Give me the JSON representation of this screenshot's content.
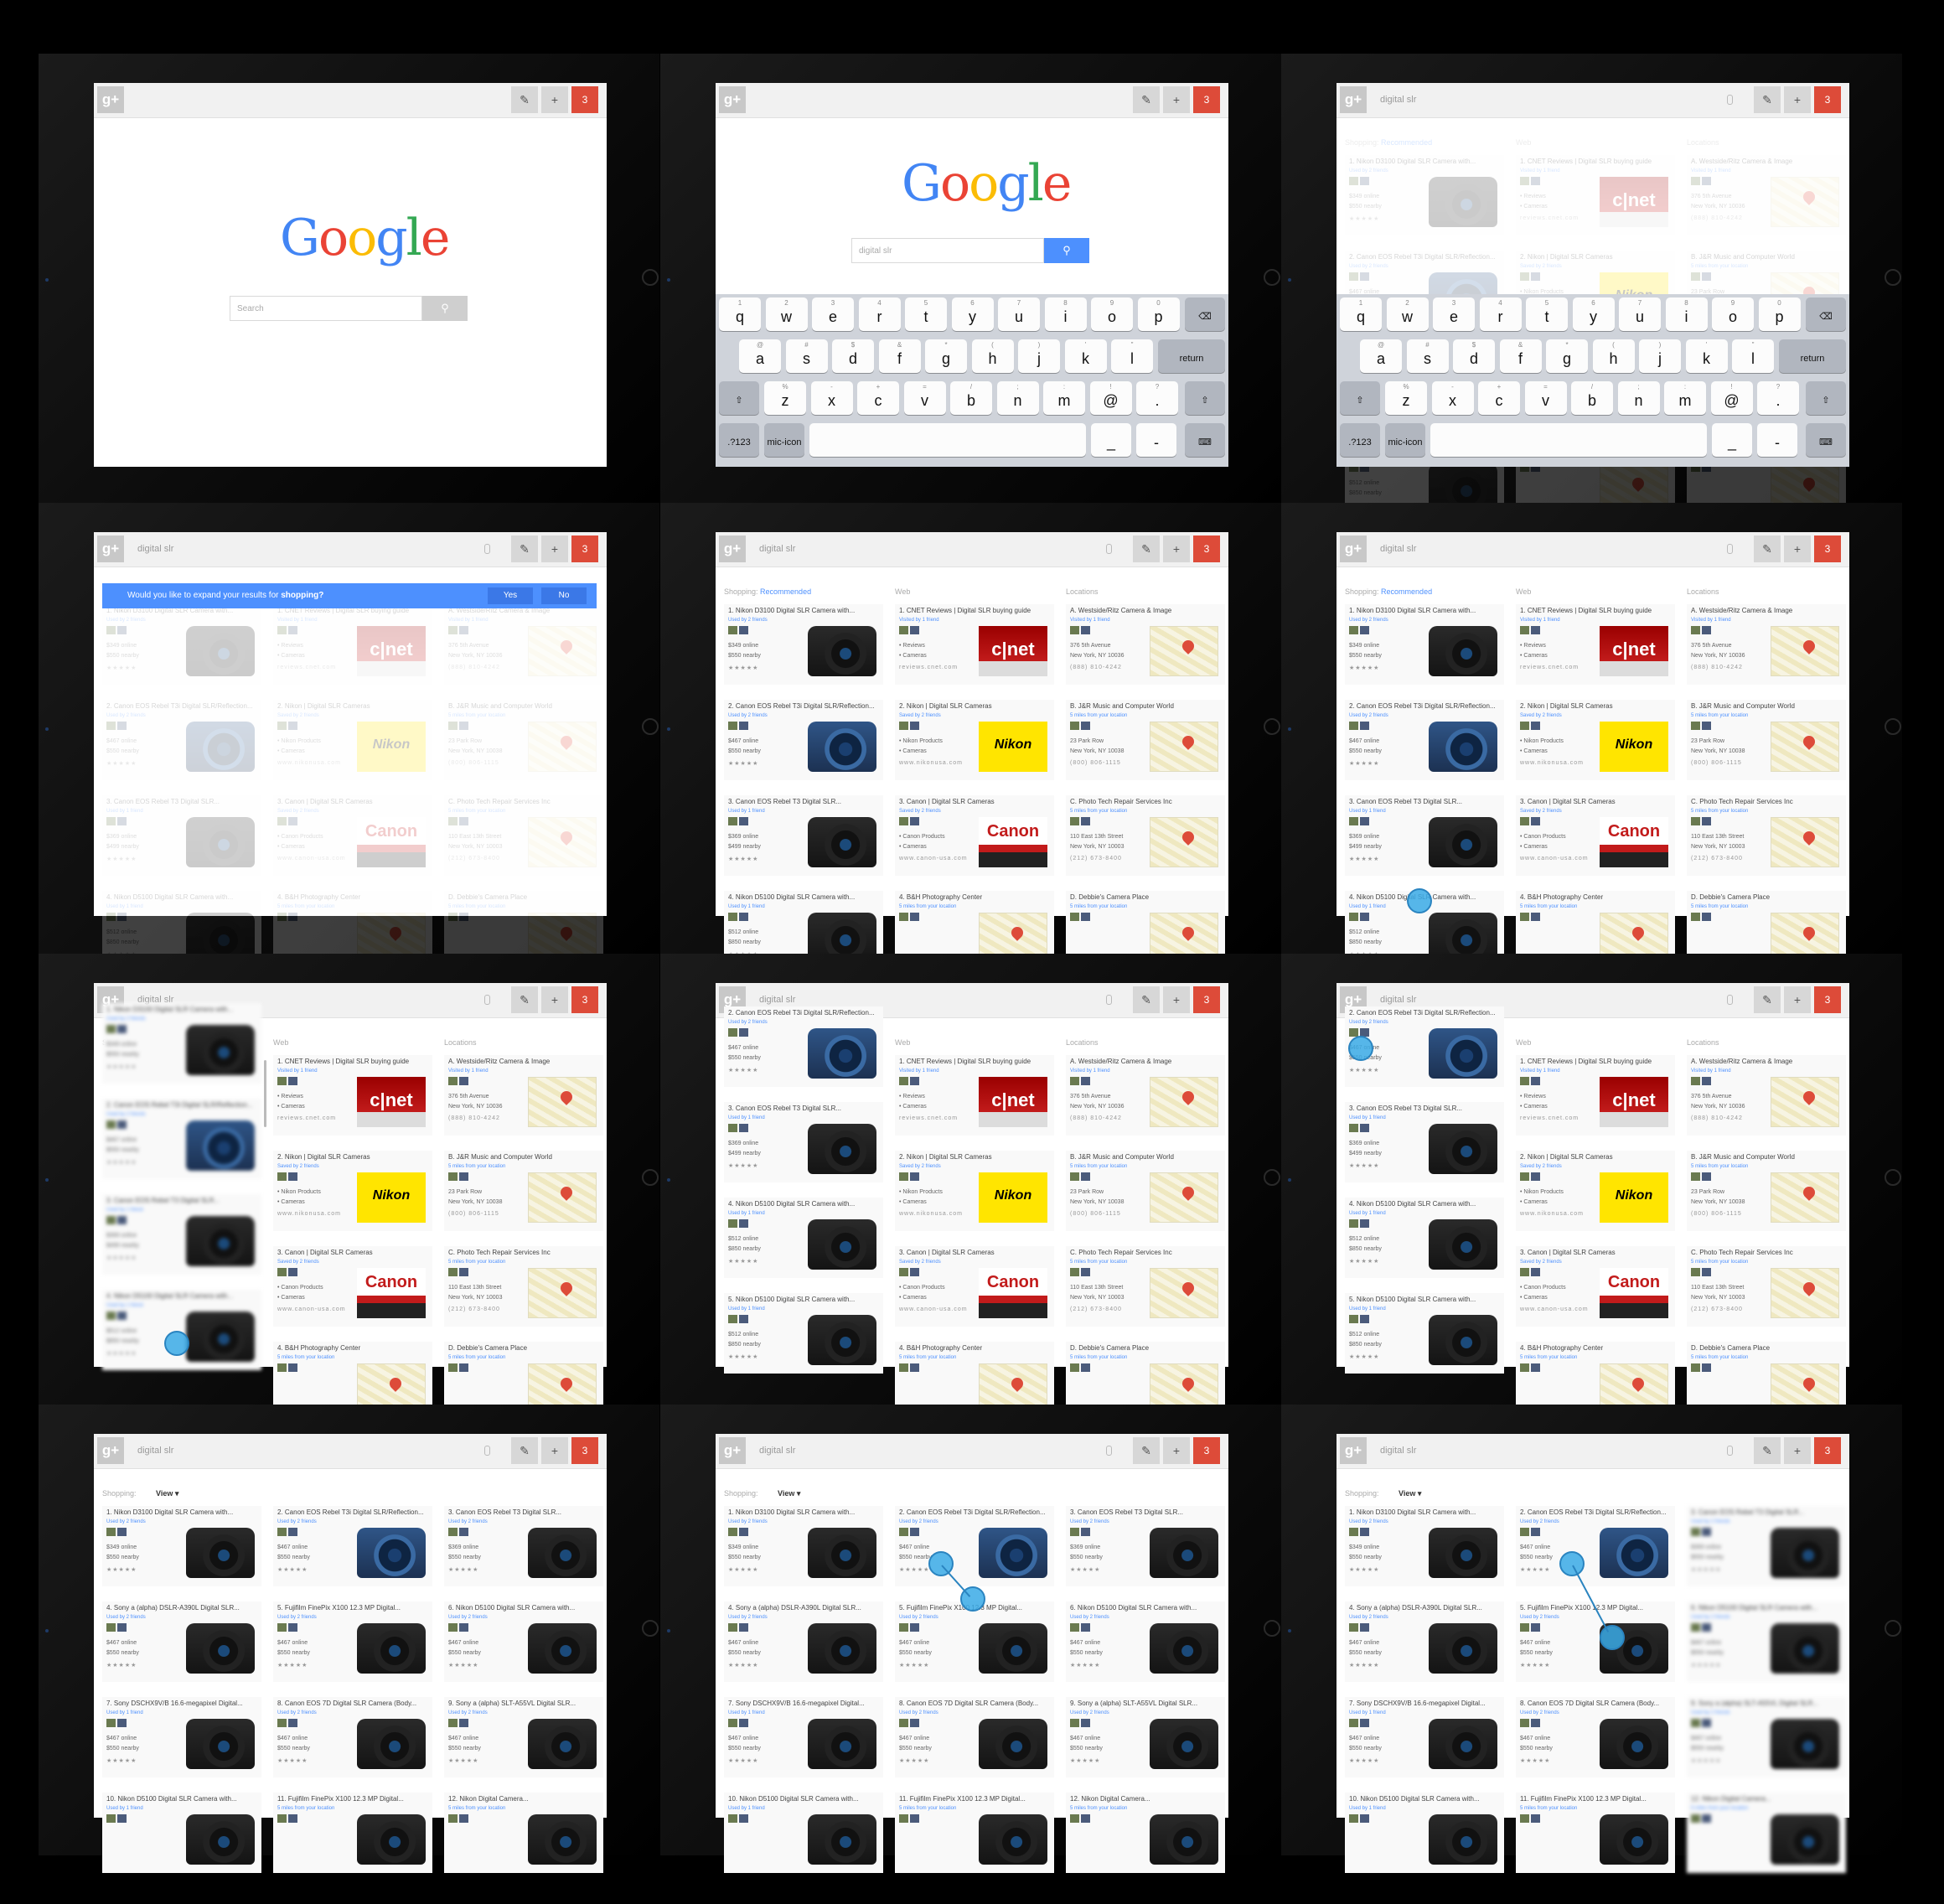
{
  "common": {
    "gplus": "g+",
    "edit_icon": "✎",
    "plus_icon": "+",
    "notify_count": "3",
    "query": "digital slr",
    "search_placeholder": "Search",
    "search_icon": "⚲",
    "mic_icon": "mic-icon"
  },
  "google": [
    "G",
    "o",
    "o",
    "g",
    "l",
    "e"
  ],
  "keyboard": {
    "row1": [
      [
        "1",
        "q"
      ],
      [
        "2",
        "w"
      ],
      [
        "3",
        "e"
      ],
      [
        "4",
        "r"
      ],
      [
        "5",
        "t"
      ],
      [
        "6",
        "y"
      ],
      [
        "7",
        "u"
      ],
      [
        "8",
        "i"
      ],
      [
        "9",
        "o"
      ],
      [
        "0",
        "p"
      ]
    ],
    "row2": [
      [
        "@",
        "a"
      ],
      [
        "#",
        "s"
      ],
      [
        "$",
        "d"
      ],
      [
        "&",
        "f"
      ],
      [
        "*",
        "g"
      ],
      [
        "(",
        "h"
      ],
      [
        ")",
        "j"
      ],
      [
        "'",
        "k"
      ],
      [
        "\"",
        "l"
      ]
    ],
    "row3": [
      [
        "%",
        "z"
      ],
      [
        "-",
        "x"
      ],
      [
        "+",
        "c"
      ],
      [
        "=",
        "v"
      ],
      [
        "/",
        "b"
      ],
      [
        ";",
        "n"
      ],
      [
        ":",
        "m"
      ],
      [
        "!",
        "@"
      ],
      [
        "?",
        "."
      ]
    ],
    "backspace": "⌫",
    "return": "return",
    "shift": "⇧",
    "num": ".?123",
    "underscore": "_",
    "dash": "-",
    "kbd_icon": "⌨"
  },
  "banner": {
    "text": "Would you like to expand your results for ",
    "bold": "shopping?",
    "yes": "Yes",
    "no": "No"
  },
  "columns": {
    "shopping": "Shopping: ",
    "recommended": "Recommended",
    "web": "Web",
    "locations": "Locations",
    "view": "View ▾"
  },
  "shopping": [
    {
      "t": "1. Nikon D3100 Digital SLR Camera with...",
      "s": "Used by 2 friends",
      "l1": "$349 online",
      "l2": "$550 nearby",
      "stars": "★★★★★",
      "img": "cam-i"
    },
    {
      "t": "2. Canon EOS Rebel T3i Digital SLR/Reflection...",
      "s": "Used by 2 friends",
      "l1": "$467 online",
      "l2": "$550 nearby",
      "stars": "★★★★★",
      "img": "cam-b"
    },
    {
      "t": "3. Canon EOS Rebel T3 Digital SLR...",
      "s": "Used by 1 friend",
      "l1": "$369 online",
      "l2": "$499 nearby",
      "stars": "★★★★★",
      "img": "cam-i"
    },
    {
      "t": "4. Nikon D5100 Digital SLR Camera with...",
      "s": "Used by 1 friend",
      "l1": "$512 online",
      "l2": "$850 nearby",
      "stars": "★★★★★",
      "img": "cam-i"
    },
    {
      "t": "5. Nikon D5100 Digital SLR Camera with...",
      "s": "Used by 1 friend",
      "l1": "$512 online",
      "l2": "$850 nearby",
      "stars": "★★★★★",
      "img": "cam-i"
    }
  ],
  "web": [
    {
      "t": "1. CNET Reviews | Digital SLR buying guide",
      "s": "Visited by 1 friend",
      "l1": "• Reviews",
      "l2": "• Cameras",
      "stars": "reviews.cnet.com",
      "img": "cnet",
      "label": "c|net"
    },
    {
      "t": "2. Nikon | Digital SLR Cameras",
      "s": "Saved by 2 friends",
      "l1": "• Nikon Products",
      "l2": "• Cameras",
      "stars": "www.nikonusa.com",
      "img": "nikon",
      "label": "Nikon"
    },
    {
      "t": "3. Canon | Digital SLR Cameras",
      "s": "Saved by 2 friends",
      "l1": "• Canon Products",
      "l2": "• Cameras",
      "stars": "www.canon-usa.com",
      "img": "canon",
      "label": "Canon"
    },
    {
      "t": "4. B&H Photography Center",
      "s": "5 miles from your location",
      "l1": "",
      "l2": "",
      "stars": "",
      "img": "map",
      "label": ""
    }
  ],
  "loc": [
    {
      "t": "A. Westside/Ritz Camera & Image",
      "s": "Visited by 1 friend",
      "l1": "376 5th Avenue",
      "l2": "New York, NY 10036",
      "stars": "(888) 810-4242",
      "img": "map",
      "label": ""
    },
    {
      "t": "B. J&R Music and Computer World",
      "s": "5 miles from your location",
      "l1": "23 Park Row",
      "l2": "New York, NY 10038",
      "stars": "(800) 806-1115",
      "img": "map",
      "label": ""
    },
    {
      "t": "C. Photo Tech Repair Services Inc",
      "s": "5 miles from your location",
      "l1": "110 East 13th Street",
      "l2": "New York, NY 10003",
      "stars": "(212) 673-8400",
      "img": "map",
      "label": ""
    },
    {
      "t": "D. Debbie's Camera Place",
      "s": "5 miles from your location",
      "l1": "",
      "l2": "",
      "stars": "",
      "img": "map",
      "label": ""
    }
  ],
  "grid": [
    {
      "t": "1. Nikon D3100 Digital SLR Camera with...",
      "s": "Used by 2 friends",
      "l1": "$349 online",
      "l2": "$550 nearby",
      "stars": "★★★★★",
      "img": "cam-i"
    },
    {
      "t": "2. Canon EOS Rebel T3i Digital SLR/Reflection...",
      "s": "Used by 2 friends",
      "l1": "$467 online",
      "l2": "$550 nearby",
      "stars": "★★★★★",
      "img": "cam-b"
    },
    {
      "t": "3. Canon EOS Rebel T3 Digital SLR...",
      "s": "Used by 2 friends",
      "l1": "$369 online",
      "l2": "$550 nearby",
      "stars": "★★★★★",
      "img": "cam-i"
    },
    {
      "t": "4. Sony a (alpha) DSLR-A390L Digital SLR...",
      "s": "Used by 2 friends",
      "l1": "$467 online",
      "l2": "$550 nearby",
      "stars": "★★★★★",
      "img": "cam-i"
    },
    {
      "t": "5. Fujifilm FinePix X100 12.3 MP Digital...",
      "s": "Used by 2 friends",
      "l1": "$467 online",
      "l2": "$550 nearby",
      "stars": "★★★★★",
      "img": "cam-i"
    },
    {
      "t": "6. Nikon D5100 Digital SLR Camera with...",
      "s": "Used by 2 friends",
      "l1": "$467 online",
      "l2": "$550 nearby",
      "stars": "★★★★★",
      "img": "cam-i"
    },
    {
      "t": "7. Sony DSCHX9V/B 16.6-megapixel Digital...",
      "s": "Used by 1 friend",
      "l1": "$467 online",
      "l2": "$550 nearby",
      "stars": "★★★★★",
      "img": "cam-i"
    },
    {
      "t": "8. Canon EOS 7D Digital SLR Camera (Body...",
      "s": "Used by 2 friends",
      "l1": "$467 online",
      "l2": "$550 nearby",
      "stars": "★★★★★",
      "img": "cam-i"
    },
    {
      "t": "9. Sony a (alpha) SLT-A55VL Digital SLR...",
      "s": "Used by 2 friends",
      "l1": "$467 online",
      "l2": "$550 nearby",
      "stars": "★★★★★",
      "img": "cam-i"
    },
    {
      "t": "10. Nikon D5100 Digital SLR Camera with...",
      "s": "Used by 1 friend",
      "l1": "",
      "l2": "",
      "stars": "",
      "img": "cam-i"
    },
    {
      "t": "11. Fujifilm FinePix X100 12.3 MP Digital...",
      "s": "5 miles from your location",
      "l1": "",
      "l2": "",
      "stars": "",
      "img": "cam-i"
    },
    {
      "t": "12. Nikon Digital Camera...",
      "s": "5 miles from your location",
      "l1": "",
      "l2": "",
      "stars": "",
      "img": "cam-i"
    }
  ]
}
